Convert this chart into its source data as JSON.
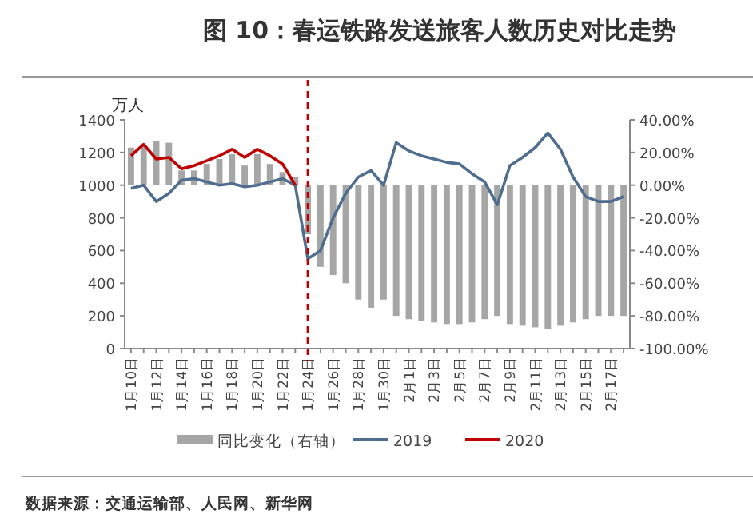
{
  "chart_data": {
    "type": "line",
    "title": "图 10：春运铁路发送旅客人数历史对比走势",
    "ylabel": "万人",
    "categories": [
      "1月10日",
      null,
      "1月12日",
      null,
      "1月14日",
      null,
      "1月16日",
      null,
      "1月18日",
      null,
      "1月20日",
      null,
      "1月22日",
      null,
      "1月24日",
      null,
      "1月26日",
      null,
      "1月28日",
      null,
      "1月30日",
      null,
      "2月1日",
      null,
      "2月3日",
      null,
      "2月5日",
      null,
      "2月7日",
      null,
      "2月9日",
      null,
      "2月11日",
      null,
      "2月13日",
      null,
      "2月15日",
      null,
      "2月17日",
      null
    ],
    "series": [
      {
        "name": "同比变化（右轴）",
        "type": "bar",
        "axis": "y2",
        "color": "#a6a6a6",
        "values": [
          23,
          24,
          27,
          26,
          9,
          9,
          13,
          16,
          19,
          12,
          19,
          13,
          8,
          5,
          -30,
          -50,
          -55,
          -60,
          -70,
          -75,
          -70,
          -80,
          -82,
          -83,
          -84,
          -85,
          -85,
          -84,
          -82,
          -80,
          -85,
          -86,
          -87,
          -88,
          -86,
          -84,
          -82,
          -80,
          -80,
          -80
        ]
      },
      {
        "name": "2019",
        "color": "#4f6d8f",
        "values": [
          980,
          1000,
          900,
          950,
          1030,
          1040,
          1020,
          1000,
          1010,
          990,
          1000,
          1020,
          1040,
          1000,
          550,
          600,
          800,
          950,
          1050,
          1090,
          1000,
          1260,
          1210,
          1180,
          1160,
          1140,
          1130,
          1070,
          1020,
          880,
          1120,
          1170,
          1230,
          1320,
          1220,
          1050,
          930,
          900,
          900,
          930
        ]
      },
      {
        "name": "2020",
        "color": "#c00000",
        "values": [
          1180,
          1250,
          1160,
          1170,
          1100,
          1120,
          1150,
          1180,
          1220,
          1170,
          1220,
          1180,
          1130,
          1000,
          null,
          null,
          null,
          null,
          null,
          null,
          null,
          null,
          null,
          null,
          null,
          null,
          null,
          null,
          null,
          null,
          null,
          null,
          null,
          null,
          null,
          null,
          null,
          null,
          null,
          null
        ]
      }
    ],
    "ylim": [
      0,
      1400
    ],
    "yticks": [
      0,
      200,
      400,
      600,
      800,
      1000,
      1200,
      1400
    ],
    "y2lim": [
      -100,
      40
    ],
    "y2ticks": [
      {
        "value": -100,
        "label": "-100.00%"
      },
      {
        "value": -80,
        "label": "-80.00%"
      },
      {
        "value": -60,
        "label": "-60.00%"
      },
      {
        "value": -40,
        "label": "-40.00%"
      },
      {
        "value": -20,
        "label": "-20.00%"
      },
      {
        "value": 0,
        "label": "0.00%"
      },
      {
        "value": 20,
        "label": "20.00%"
      },
      {
        "value": 40,
        "label": "40.00%"
      }
    ],
    "ref_lines": [
      {
        "axis": "x",
        "value": "1月24日",
        "color": "#c00000",
        "line_style": "dashed"
      }
    ],
    "legend": "bottom",
    "annotations": [
      "数据来源：交通运输部、人民网、新华网"
    ]
  }
}
